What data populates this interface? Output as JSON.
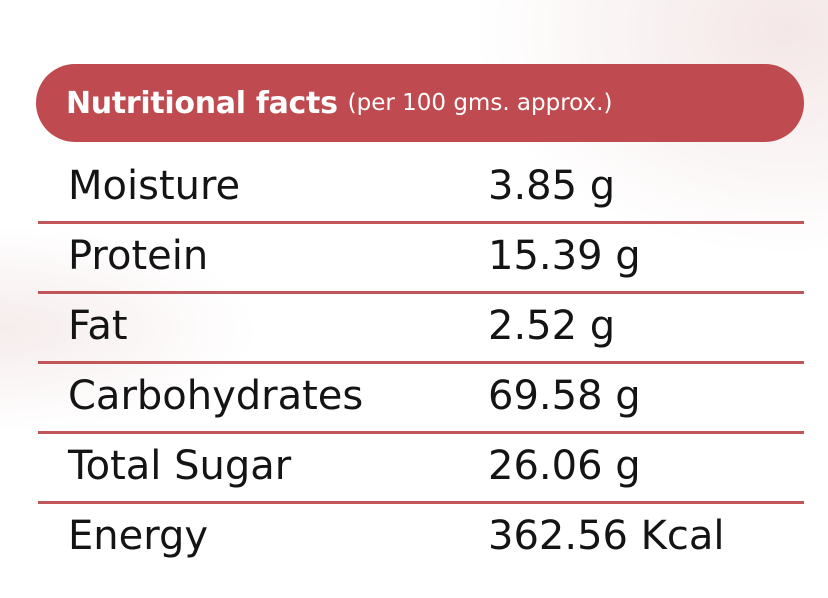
{
  "header": {
    "title": "Nutritional facts",
    "subtitle": "(per 100 gms. approx.)"
  },
  "rows": [
    {
      "label": "Moisture",
      "value": "3.85 g"
    },
    {
      "label": "Protein",
      "value": "15.39 g"
    },
    {
      "label": "Fat",
      "value": "2.52 g"
    },
    {
      "label": "Carbohydrates",
      "value": "69.58 g"
    },
    {
      "label": "Total Sugar",
      "value": "26.06 g"
    },
    {
      "label": "Energy",
      "value": "362.56 Kcal"
    }
  ],
  "colors": {
    "header_bg": "#bf4a4f",
    "divider": "#c0555a",
    "text": "#141414"
  }
}
